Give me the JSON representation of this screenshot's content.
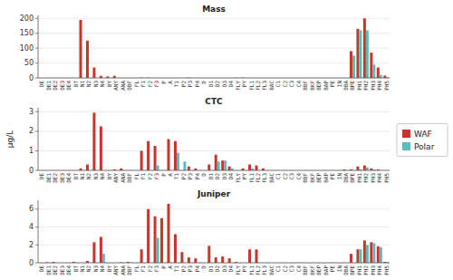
{
  "chart_data": [
    {
      "type": "bar",
      "title": "Mass",
      "categories": [
        "DE",
        "DE1",
        "DE2",
        "DE3",
        "DE4",
        "BT",
        "N1",
        "N2",
        "N3",
        "N4",
        "BY",
        "ANY",
        "ANA",
        "DBF",
        "FL",
        "F1",
        "F2",
        "F3",
        "P",
        "A",
        "T1",
        "P2",
        "P3",
        "P4",
        "D",
        "D1",
        "D2",
        "D3",
        "D4",
        "FLY",
        "PY",
        "FL1",
        "FL2",
        "FL3",
        "BAC",
        "C1",
        "C2",
        "C3",
        "C4",
        "BBF",
        "BKF",
        "BEP",
        "BAP",
        "PE",
        "IN",
        "DBA",
        "BPE",
        "PH1",
        "PH2",
        "PH3",
        "PH4",
        "PH5"
      ],
      "series": [
        {
          "name": "WAF",
          "color": "#c9352a",
          "values": [
            0,
            0,
            0,
            0,
            0,
            0,
            195,
            125,
            35,
            7,
            5,
            7,
            0,
            0,
            0,
            1,
            1,
            0,
            0,
            0,
            0,
            0,
            1,
            0,
            0,
            0,
            0,
            0,
            0,
            1,
            1,
            0,
            0,
            0,
            0,
            0,
            0,
            0,
            0,
            0,
            0,
            0,
            0,
            0,
            0,
            0,
            90,
            165,
            200,
            85,
            35,
            8
          ]
        },
        {
          "name": "Polar",
          "color": "#5bbcbc",
          "values": [
            0,
            0,
            0,
            0,
            0,
            0,
            0,
            0,
            0,
            0,
            0,
            0,
            0,
            0,
            0,
            0,
            0,
            0,
            0,
            0,
            0,
            0,
            0,
            0,
            0,
            0,
            0,
            0,
            0,
            0,
            0,
            0,
            0,
            0,
            0,
            0,
            0,
            0,
            0,
            0,
            0,
            0,
            0,
            0,
            0,
            0,
            75,
            160,
            160,
            45,
            10,
            2
          ]
        }
      ],
      "ylim": [
        0,
        210
      ],
      "yticks": [
        0,
        50,
        100,
        150,
        200
      ],
      "grid": true
    },
    {
      "type": "bar",
      "title": "CTC",
      "ylabel": "μg/L",
      "categories": [
        "DE",
        "DE1",
        "DE2",
        "DE3",
        "DE4",
        "BT",
        "N1",
        "N2",
        "N3",
        "N4",
        "BY",
        "ANY",
        "ANA",
        "DBF",
        "FL",
        "F1",
        "F2",
        "F3",
        "P",
        "A",
        "T1",
        "P2",
        "P3",
        "P4",
        "D",
        "D1",
        "D2",
        "D3",
        "D4",
        "FLY",
        "PY",
        "FL1",
        "FL2",
        "FL3",
        "BAC",
        "C1",
        "C2",
        "C3",
        "C4",
        "BBF",
        "BKF",
        "BEP",
        "BAP",
        "PE",
        "IN",
        "DBA",
        "BPE",
        "PH1",
        "PH2",
        "PH3",
        "PH4",
        "PH5"
      ],
      "series": [
        {
          "name": "WAF",
          "color": "#c9352a",
          "values": [
            0,
            0,
            0,
            0,
            0,
            0,
            0.1,
            0.3,
            2.95,
            2.25,
            0,
            0.05,
            0.1,
            0,
            0,
            1.0,
            1.5,
            1.25,
            0,
            1.6,
            1.5,
            0,
            0.2,
            0.1,
            0,
            0.3,
            0.8,
            0.5,
            0.2,
            0,
            0.1,
            0.3,
            0.25,
            0.1,
            0,
            0,
            0,
            0,
            0,
            0,
            0,
            0,
            0,
            0,
            0,
            0.05,
            0.05,
            0.2,
            0.25,
            0.1,
            0.05,
            0
          ]
        },
        {
          "name": "Polar",
          "color": "#5bbcbc",
          "values": [
            0,
            0,
            0,
            0,
            0,
            0,
            0,
            0,
            0,
            0,
            0,
            0,
            0,
            0,
            0,
            0,
            0,
            0.25,
            0,
            0,
            0.9,
            0.45,
            0,
            0,
            0,
            0,
            0.45,
            0.5,
            0.1,
            0,
            0,
            0.1,
            0,
            0,
            0,
            0,
            0,
            0,
            0,
            0,
            0,
            0,
            0,
            0,
            0,
            0,
            0,
            0.05,
            0.15,
            0.05,
            0,
            0
          ]
        }
      ],
      "ylim": [
        0,
        3.2
      ],
      "yticks": [
        0,
        1,
        2,
        3
      ],
      "grid": true,
      "legend": "right"
    },
    {
      "type": "bar",
      "title": "Juniper",
      "categories": [
        "DE",
        "DE1",
        "DE2",
        "DE3",
        "DE4",
        "BT",
        "N1",
        "N2",
        "N3",
        "N4",
        "BY",
        "ANY",
        "ANA",
        "DBF",
        "FL",
        "F1",
        "F2",
        "F3",
        "P",
        "A",
        "T1",
        "P2",
        "P3",
        "P4",
        "D",
        "D1",
        "D2",
        "D3",
        "D4",
        "FLY",
        "PY",
        "FL1",
        "FL2",
        "FL3",
        "BAC",
        "C1",
        "C2",
        "C3",
        "C4",
        "BBF",
        "BKF",
        "BEP",
        "BAP",
        "PE",
        "IN",
        "DBA",
        "BPE",
        "PH1",
        "PH2",
        "PH3",
        "PH4",
        "PH5"
      ],
      "series": [
        {
          "name": "WAF",
          "color": "#c9352a",
          "values": [
            0,
            0.05,
            0.1,
            0,
            0,
            0.1,
            0,
            0.2,
            2.3,
            2.9,
            0,
            0,
            0.05,
            0.1,
            0,
            1.5,
            6.0,
            5.2,
            5.0,
            6.6,
            3.2,
            1.2,
            0.6,
            0.5,
            0,
            1.9,
            0.6,
            0.7,
            0.5,
            0.1,
            0,
            1.5,
            1.5,
            0,
            0,
            0,
            0,
            0,
            0,
            0,
            0,
            0,
            0,
            0,
            0,
            0,
            1.0,
            1.5,
            2.5,
            2.3,
            1.85,
            0.1
          ]
        },
        {
          "name": "Polar",
          "color": "#5bbcbc",
          "values": [
            0,
            0,
            0,
            0,
            0,
            0,
            0,
            0,
            0,
            1.0,
            0,
            0,
            0,
            0,
            0,
            0,
            0,
            2.8,
            0,
            0,
            0,
            0,
            0,
            0,
            0,
            0,
            0,
            0,
            0,
            0,
            0,
            0,
            0,
            0,
            0,
            0,
            0,
            0,
            0,
            0,
            0,
            0,
            0,
            0,
            0,
            0,
            0,
            1.5,
            2.0,
            2.2,
            1.75,
            0.1
          ]
        }
      ],
      "ylim": [
        0,
        7
      ],
      "yticks": [
        0,
        2,
        4,
        6
      ],
      "grid": true
    }
  ]
}
